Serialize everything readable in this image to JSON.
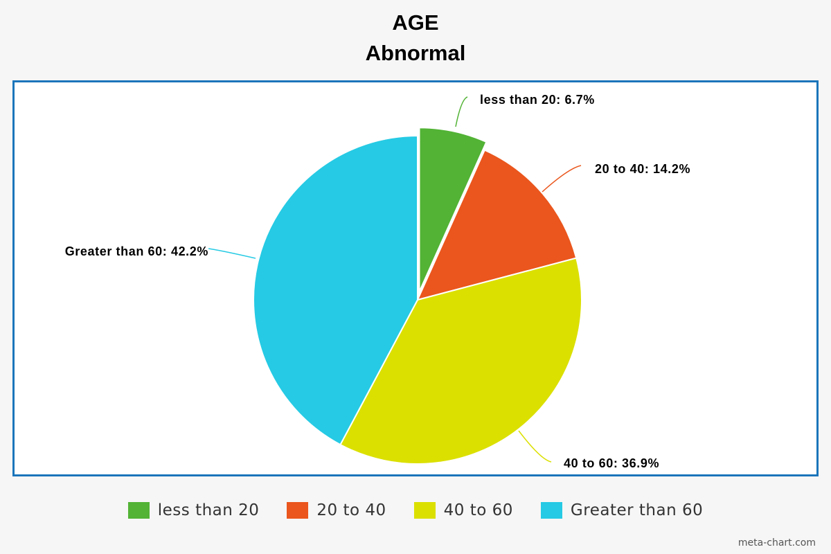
{
  "chart_data": {
    "type": "pie",
    "title": "AGE",
    "subtitle": "Abnormal",
    "unit": "%",
    "legend_position": "bottom",
    "exploded_slice": "less than 20",
    "slices": [
      {
        "label": "less than 20",
        "value": 6.7,
        "color": "#52b335",
        "display": "less than 20: 6.7%"
      },
      {
        "label": "20 to 40",
        "value": 14.2,
        "color": "#ea561d",
        "display": "20 to 40: 14.2%"
      },
      {
        "label": "40 to 60",
        "value": 36.9,
        "color": "#dbe000",
        "display": "40 to 60: 36.9%"
      },
      {
        "label": "Greater than 60",
        "value": 42.2,
        "color": "#26cae4",
        "display": "Greater than 60: 42.2%"
      }
    ]
  },
  "watermark": "meta-chart.com"
}
